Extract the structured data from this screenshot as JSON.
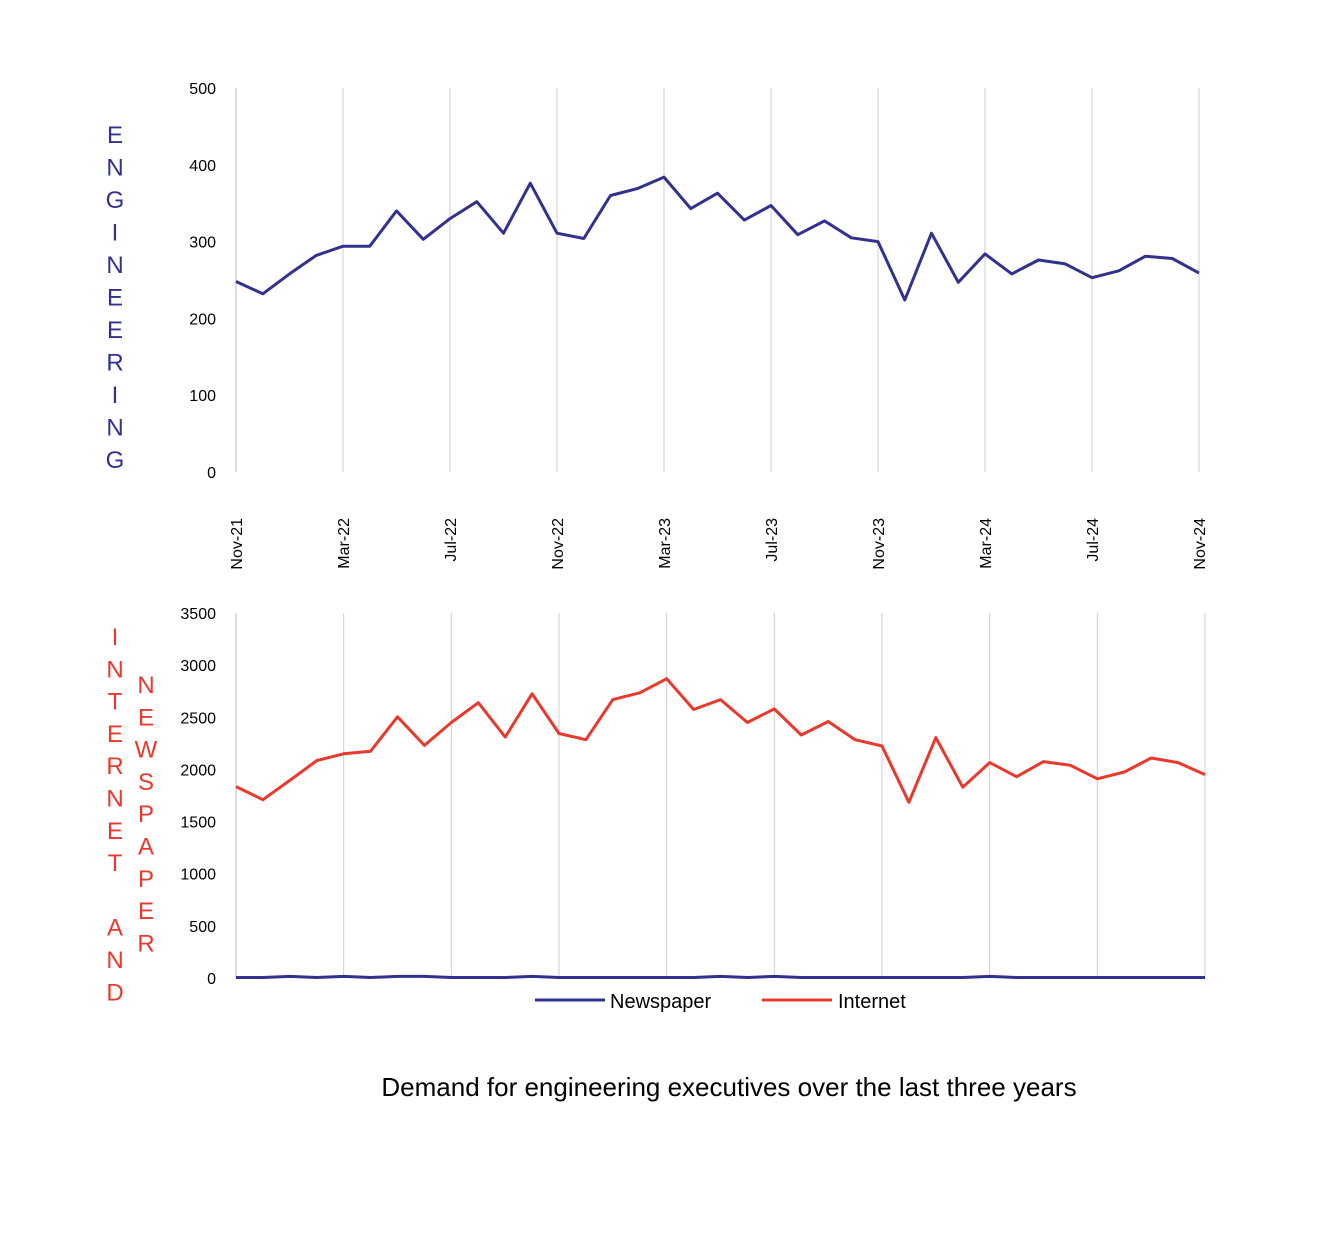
{
  "caption": "Demand for engineering executives over the last three years",
  "colors": {
    "newspaper": "#31318f",
    "internet": "#e8392c",
    "grid": "#cfcfcf"
  },
  "chart_data": [
    {
      "type": "line",
      "ylabel": "ENGINEERING",
      "ylim": [
        0,
        500
      ],
      "yticks": [
        "0",
        "100",
        "200",
        "300",
        "400",
        "500"
      ],
      "xticklabels": [
        "Nov-21",
        "Mar-22",
        "Jul-22",
        "Nov-22",
        "Mar-23",
        "Jul-23",
        "Nov-23",
        "Mar-24",
        "Jul-24",
        "Nov-24"
      ],
      "x": [
        "Nov-21",
        "Dec-21",
        "Jan-22",
        "Feb-22",
        "Mar-22",
        "Apr-22",
        "May-22",
        "Jun-22",
        "Jul-22",
        "Aug-22",
        "Sep-22",
        "Oct-22",
        "Nov-22",
        "Dec-22",
        "Jan-23",
        "Feb-23",
        "Mar-23",
        "Apr-23",
        "May-23",
        "Jun-23",
        "Jul-23",
        "Aug-23",
        "Sep-23",
        "Oct-23",
        "Nov-23",
        "Dec-23",
        "Jan-24",
        "Feb-24",
        "Mar-24",
        "Apr-24",
        "May-24",
        "Jun-24",
        "Jul-24",
        "Aug-24",
        "Sep-24",
        "Oct-24",
        "Nov-24"
      ],
      "series": [
        {
          "name": "Engineering",
          "values": [
            248,
            232,
            258,
            282,
            294,
            294,
            340,
            303,
            330,
            352,
            311,
            376,
            311,
            304,
            360,
            369,
            384,
            343,
            363,
            328,
            347,
            309,
            327,
            305,
            300,
            224,
            311,
            247,
            284,
            258,
            276,
            271,
            253,
            262,
            281,
            278,
            259
          ]
        }
      ]
    },
    {
      "type": "line",
      "ylabel_left": "INTERNET AND",
      "ylabel_right": "NEWSPAPER",
      "ylim": [
        0,
        3500
      ],
      "yticks": [
        "0",
        "500",
        "1000",
        "1500",
        "2000",
        "2500",
        "3000",
        "3500"
      ],
      "x": [
        "Nov-21",
        "Dec-21",
        "Jan-22",
        "Feb-22",
        "Mar-22",
        "Apr-22",
        "May-22",
        "Jun-22",
        "Jul-22",
        "Aug-22",
        "Sep-22",
        "Oct-22",
        "Nov-22",
        "Dec-22",
        "Jan-23",
        "Feb-23",
        "Mar-23",
        "Apr-23",
        "May-23",
        "Jun-23",
        "Jul-23",
        "Aug-23",
        "Sep-23",
        "Oct-23",
        "Nov-23",
        "Dec-23",
        "Jan-24",
        "Feb-24",
        "Mar-24",
        "Apr-24",
        "May-24",
        "Jun-24",
        "Jul-24",
        "Aug-24",
        "Sep-24",
        "Oct-24",
        "Nov-24"
      ],
      "legend": [
        "Newspaper",
        "Internet"
      ],
      "legend_position": "bottom",
      "series": [
        {
          "name": "Newspaper",
          "values": [
            5,
            5,
            15,
            5,
            15,
            5,
            15,
            15,
            5,
            5,
            5,
            15,
            5,
            5,
            5,
            5,
            5,
            5,
            15,
            5,
            15,
            5,
            5,
            5,
            5,
            5,
            5,
            5,
            15,
            5,
            5,
            5,
            5,
            5,
            5,
            5,
            5
          ]
        },
        {
          "name": "Internet",
          "values": [
            1835,
            1710,
            1895,
            2085,
            2150,
            2175,
            2505,
            2230,
            2450,
            2640,
            2310,
            2725,
            2345,
            2285,
            2670,
            2735,
            2870,
            2575,
            2670,
            2450,
            2580,
            2330,
            2460,
            2285,
            2225,
            1685,
            2305,
            1830,
            2065,
            1930,
            2075,
            2040,
            1910,
            1975,
            2110,
            2065,
            1950
          ]
        }
      ]
    }
  ]
}
